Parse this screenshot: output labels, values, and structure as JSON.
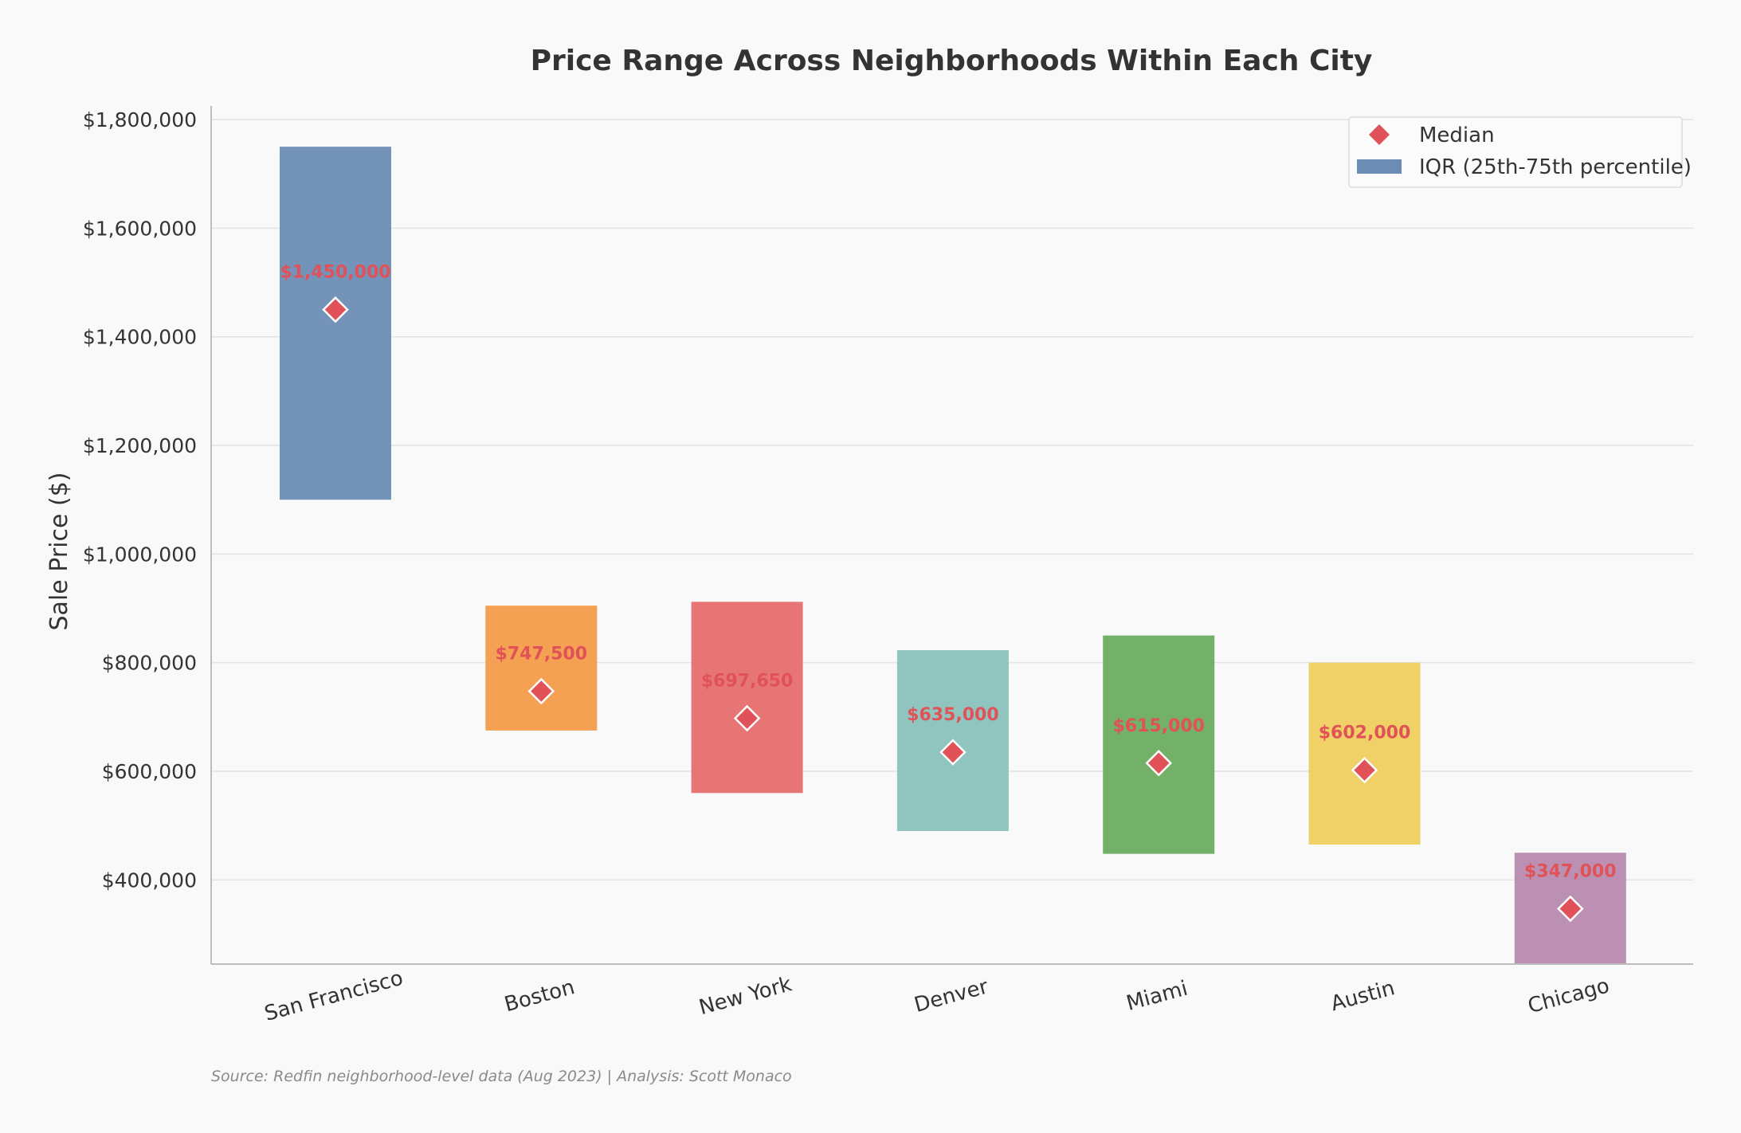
{
  "chart_data": {
    "type": "bar",
    "title": "Price Range Across Neighborhoods Within Each City",
    "ylabel": "Sale Price ($)",
    "xlabel": "",
    "ylim": [
      245000,
      1825000
    ],
    "yticks": [
      400000,
      600000,
      800000,
      1000000,
      1200000,
      1400000,
      1600000,
      1800000
    ],
    "ytick_labels": [
      "$400,000",
      "$600,000",
      "$800,000",
      "$1,000,000",
      "$1,200,000",
      "$1,400,000",
      "$1,600,000",
      "$1,800,000"
    ],
    "grid": true,
    "legend_position": "top-right",
    "legend": [
      {
        "label": "Median",
        "marker": "diamond",
        "color": "#e05257"
      },
      {
        "label": "IQR (25th-75th percentile)",
        "marker": "bar",
        "color": "#6b8db5"
      }
    ],
    "median_color": "#e05257",
    "categories": [
      "San Francisco",
      "Boston",
      "New York",
      "Denver",
      "Miami",
      "Austin",
      "Chicago"
    ],
    "q1": [
      1100000,
      675000,
      560000,
      490000,
      448000,
      465000,
      245000
    ],
    "q3": [
      1750000,
      905000,
      912000,
      823000,
      850000,
      800000,
      450000
    ],
    "medians": [
      1450000,
      747500,
      697650,
      635000,
      615000,
      602000,
      347000
    ],
    "median_labels": [
      "$1,450,000",
      "$747,500",
      "$697,650",
      "$635,000",
      "$615,000",
      "$602,000",
      "$347,000"
    ],
    "colors": [
      "#6b8db5",
      "#f39c4a",
      "#e66e6e",
      "#89c2bb",
      "#6aad5f",
      "#eecf5f",
      "#b88aaf"
    ],
    "source": "Source: Redfin neighborhood-level data (Aug 2023) | Analysis: Scott Monaco"
  }
}
